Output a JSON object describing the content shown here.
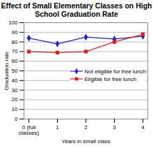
{
  "chart_data": {
    "type": "line",
    "title": "Effect of Small Elementary Classes on High School Graduation Rate",
    "x_label": "Years in small class",
    "y_label": "Graduation rate",
    "categories": [
      "0 (full classes)",
      "1",
      "2",
      "3",
      "4"
    ],
    "series": [
      {
        "name": "Not eligible for free lunch",
        "color": "#1f1fe0",
        "marker": "diamond",
        "values": [
          84,
          78,
          85,
          83,
          86
        ]
      },
      {
        "name": "Eligible for free lunch",
        "color": "#e02020",
        "marker": "square",
        "values": [
          70,
          69,
          70,
          80,
          88
        ]
      }
    ],
    "ylim": [
      0,
      100
    ],
    "yticks": [
      0,
      10,
      20,
      30,
      40,
      50,
      60,
      70,
      80,
      90,
      100
    ],
    "grid": true,
    "legend": "right"
  }
}
